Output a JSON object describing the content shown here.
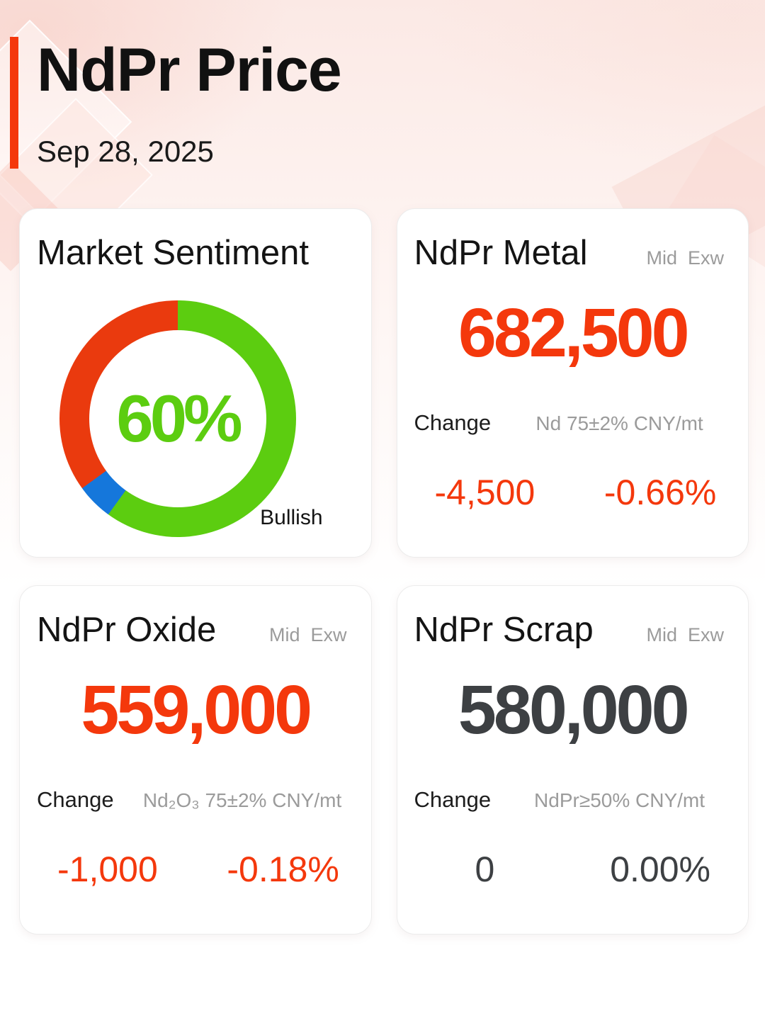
{
  "page": {
    "title": "NdPr Price",
    "date": "Sep 28, 2025"
  },
  "colors": {
    "accent-red": "#F4380C",
    "donut-green": "#5CCD10",
    "donut-blue": "#1577DB",
    "donut-red": "#EA3A0E",
    "dark-value": "#3D4043",
    "muted-gray": "#9B9B9B"
  },
  "chart_data": {
    "type": "pie",
    "donut": true,
    "title": "Market Sentiment",
    "center_text": "60%",
    "annotation": "Bullish",
    "start_angle_deg": 0,
    "direction": "clockwise",
    "slices": [
      {
        "label": "Bullish",
        "value": 60,
        "color": "#5CCD10"
      },
      {
        "label": "",
        "value": 5,
        "color": "#1577DB"
      },
      {
        "label": "",
        "value": 35,
        "color": "#EA3A0E"
      }
    ]
  },
  "cards": [
    {
      "title": "NdPr Metal",
      "tag_mid": "Mid",
      "tag_exw": "Exw",
      "price": "682,500",
      "change_label": "Change",
      "spec": "Nd 75±2% CNY/mt",
      "change_value": "-4,500",
      "change_percent": "-0.66%",
      "trend": "down"
    },
    {
      "title": "NdPr Oxide",
      "tag_mid": "Mid",
      "tag_exw": "Exw",
      "price": "559,000",
      "change_label": "Change",
      "spec": "Nd₂O₃ 75±2% CNY/mt",
      "change_value": "-1,000",
      "change_percent": "-0.18%",
      "trend": "down"
    },
    {
      "title": "NdPr Scrap",
      "tag_mid": "Mid",
      "tag_exw": "Exw",
      "price": "580,000",
      "change_label": "Change",
      "spec": "NdPr≥50% CNY/mt",
      "change_value": "0",
      "change_percent": "0.00%",
      "trend": "flat"
    }
  ]
}
